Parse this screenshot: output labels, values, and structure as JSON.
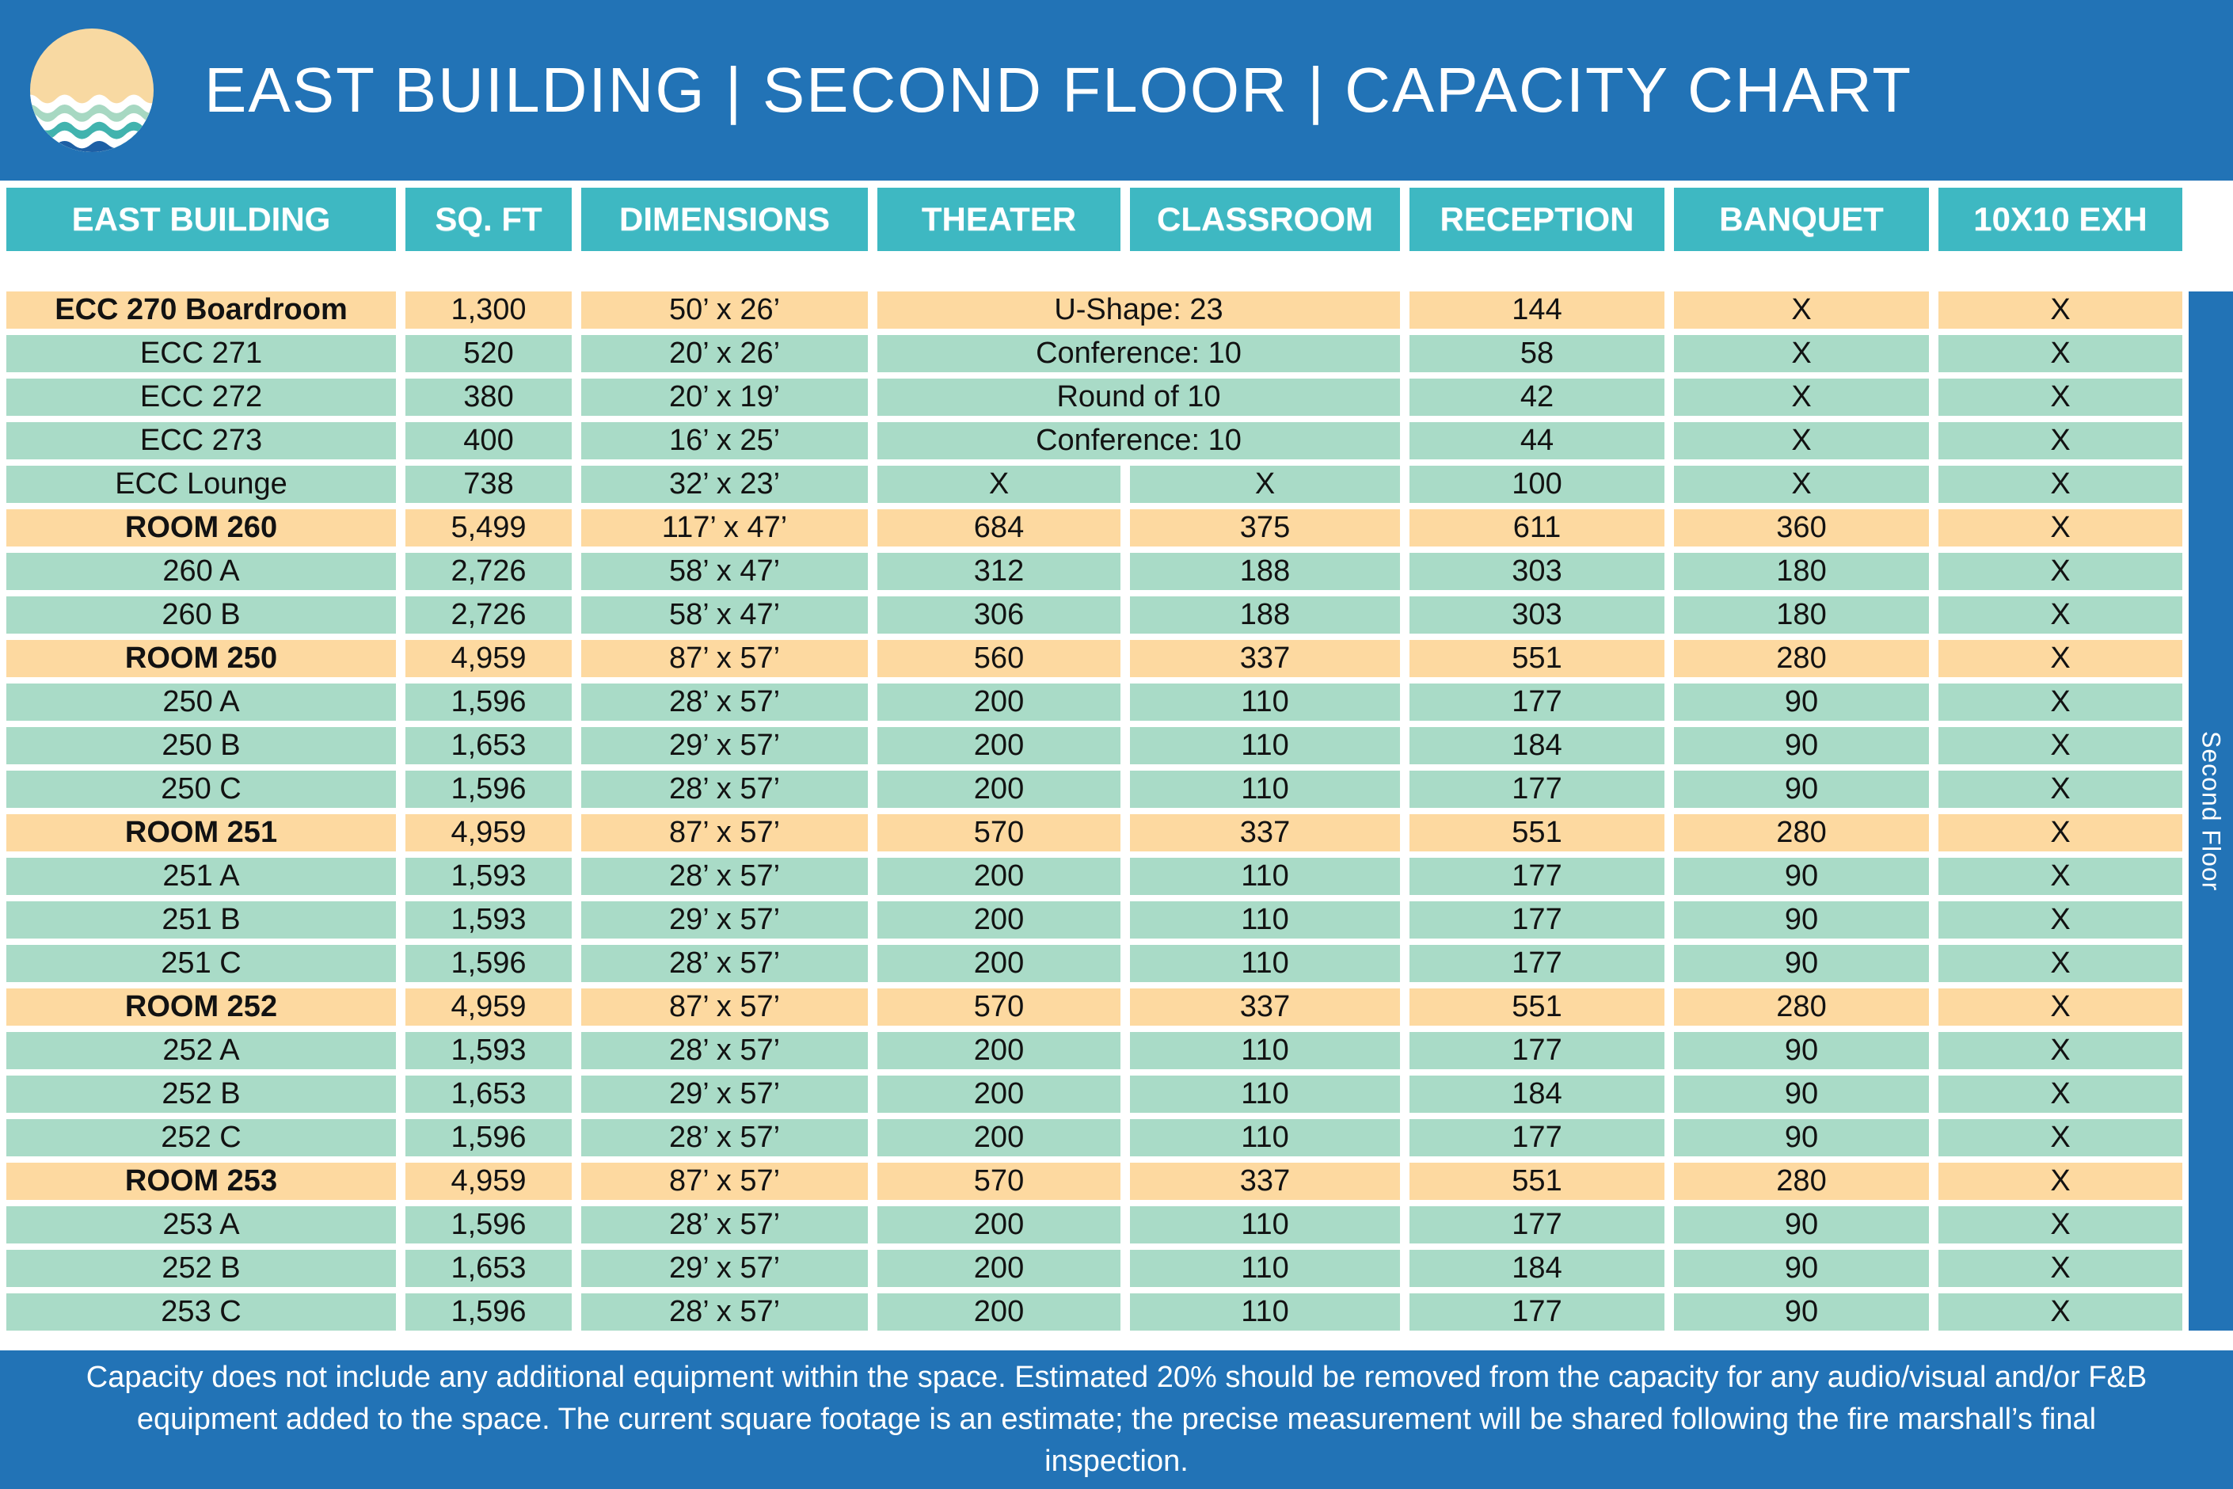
{
  "header": {
    "title": "EAST BUILDING | SECOND FLOOR | CAPACITY CHART",
    "logo_icon": "sun-over-waves-icon"
  },
  "colors": {
    "banner_blue": "#2273b6",
    "header_teal": "#3eb8c2",
    "row_green": "#a9dbc7",
    "row_peach": "#fdd9a0",
    "logo_sand": "#f8d9a2",
    "logo_seafoam": "#a7d8c2",
    "logo_teal": "#41b3ae",
    "logo_navy": "#1d5fa5"
  },
  "sidebar": {
    "label": "Second Floor"
  },
  "footer": {
    "text": "Capacity does not include any additional equipment within the space. Estimated 20% should be removed from the capacity for any audio/visual and/or F&B equipment added to the space. The current square footage is an estimate; the precise measurement will be shared following the fire marshall’s final inspection."
  },
  "chart_data": {
    "type": "table",
    "title": "EAST BUILDING | SECOND FLOOR | CAPACITY CHART",
    "columns": [
      "EAST BUILDING",
      "SQ. FT",
      "DIMENSIONS",
      "THEATER",
      "CLASSROOM",
      "RECEPTION",
      "BANQUET",
      "10X10 EXH"
    ],
    "rows": [
      {
        "name": "ECC 270 Boardroom",
        "sqft": "1,300",
        "dimensions": "50’ x 26’",
        "merged": "U-Shape: 23",
        "reception": "144",
        "banquet": "X",
        "exh": "X",
        "style": "section"
      },
      {
        "name": "ECC 271",
        "sqft": "520",
        "dimensions": "20’ x 26’",
        "merged": "Conference: 10",
        "reception": "58",
        "banquet": "X",
        "exh": "X",
        "style": "sub"
      },
      {
        "name": "ECC 272",
        "sqft": "380",
        "dimensions": "20’ x 19’",
        "merged": "Round of 10",
        "reception": "42",
        "banquet": "X",
        "exh": "X",
        "style": "sub"
      },
      {
        "name": "ECC 273",
        "sqft": "400",
        "dimensions": "16’ x 25’",
        "merged": "Conference: 10",
        "reception": "44",
        "banquet": "X",
        "exh": "X",
        "style": "sub"
      },
      {
        "name": "ECC Lounge",
        "sqft": "738",
        "dimensions": "32’ x 23’",
        "theater": "X",
        "classroom": "X",
        "reception": "100",
        "banquet": "X",
        "exh": "X",
        "style": "sub"
      },
      {
        "name": "ROOM 260",
        "sqft": "5,499",
        "dimensions": "117’ x 47’",
        "theater": "684",
        "classroom": "375",
        "reception": "611",
        "banquet": "360",
        "exh": "X",
        "style": "section"
      },
      {
        "name": "260 A",
        "sqft": "2,726",
        "dimensions": "58’ x 47’",
        "theater": "312",
        "classroom": "188",
        "reception": "303",
        "banquet": "180",
        "exh": "X",
        "style": "sub"
      },
      {
        "name": "260 B",
        "sqft": "2,726",
        "dimensions": "58’ x 47’",
        "theater": "306",
        "classroom": "188",
        "reception": "303",
        "banquet": "180",
        "exh": "X",
        "style": "sub"
      },
      {
        "name": "ROOM 250",
        "sqft": "4,959",
        "dimensions": "87’ x 57’",
        "theater": "560",
        "classroom": "337",
        "reception": "551",
        "banquet": "280",
        "exh": "X",
        "style": "section"
      },
      {
        "name": "250 A",
        "sqft": "1,596",
        "dimensions": "28’ x 57’",
        "theater": "200",
        "classroom": "110",
        "reception": "177",
        "banquet": "90",
        "exh": "X",
        "style": "sub"
      },
      {
        "name": "250 B",
        "sqft": "1,653",
        "dimensions": "29’ x 57’",
        "theater": "200",
        "classroom": "110",
        "reception": "184",
        "banquet": "90",
        "exh": "X",
        "style": "sub"
      },
      {
        "name": "250 C",
        "sqft": "1,596",
        "dimensions": "28’ x 57’",
        "theater": "200",
        "classroom": "110",
        "reception": "177",
        "banquet": "90",
        "exh": "X",
        "style": "sub"
      },
      {
        "name": "ROOM 251",
        "sqft": "4,959",
        "dimensions": "87’ x 57’",
        "theater": "570",
        "classroom": "337",
        "reception": "551",
        "banquet": "280",
        "exh": "X",
        "style": "section"
      },
      {
        "name": "251 A",
        "sqft": "1,593",
        "dimensions": "28’ x 57’",
        "theater": "200",
        "classroom": "110",
        "reception": "177",
        "banquet": "90",
        "exh": "X",
        "style": "sub"
      },
      {
        "name": "251 B",
        "sqft": "1,593",
        "dimensions": "29’ x 57’",
        "theater": "200",
        "classroom": "110",
        "reception": "177",
        "banquet": "90",
        "exh": "X",
        "style": "sub"
      },
      {
        "name": "251 C",
        "sqft": "1,596",
        "dimensions": "28’ x 57’",
        "theater": "200",
        "classroom": "110",
        "reception": "177",
        "banquet": "90",
        "exh": "X",
        "style": "sub"
      },
      {
        "name": "ROOM 252",
        "sqft": "4,959",
        "dimensions": "87’ x 57’",
        "theater": "570",
        "classroom": "337",
        "reception": "551",
        "banquet": "280",
        "exh": "X",
        "style": "section"
      },
      {
        "name": "252 A",
        "sqft": "1,593",
        "dimensions": "28’ x 57’",
        "theater": "200",
        "classroom": "110",
        "reception": "177",
        "banquet": "90",
        "exh": "X",
        "style": "sub"
      },
      {
        "name": "252 B",
        "sqft": "1,653",
        "dimensions": "29’ x 57’",
        "theater": "200",
        "classroom": "110",
        "reception": "184",
        "banquet": "90",
        "exh": "X",
        "style": "sub"
      },
      {
        "name": "252 C",
        "sqft": "1,596",
        "dimensions": "28’ x 57’",
        "theater": "200",
        "classroom": "110",
        "reception": "177",
        "banquet": "90",
        "exh": "X",
        "style": "sub"
      },
      {
        "name": "ROOM 253",
        "sqft": "4,959",
        "dimensions": "87’ x 57’",
        "theater": "570",
        "classroom": "337",
        "reception": "551",
        "banquet": "280",
        "exh": "X",
        "style": "section"
      },
      {
        "name": "253 A",
        "sqft": "1,596",
        "dimensions": "28’ x 57’",
        "theater": "200",
        "classroom": "110",
        "reception": "177",
        "banquet": "90",
        "exh": "X",
        "style": "sub"
      },
      {
        "name": "252 B",
        "sqft": "1,653",
        "dimensions": "29’ x 57’",
        "theater": "200",
        "classroom": "110",
        "reception": "184",
        "banquet": "90",
        "exh": "X",
        "style": "sub"
      },
      {
        "name": "253 C",
        "sqft": "1,596",
        "dimensions": "28’ x 57’",
        "theater": "200",
        "classroom": "110",
        "reception": "177",
        "banquet": "90",
        "exh": "X",
        "style": "sub"
      }
    ]
  }
}
